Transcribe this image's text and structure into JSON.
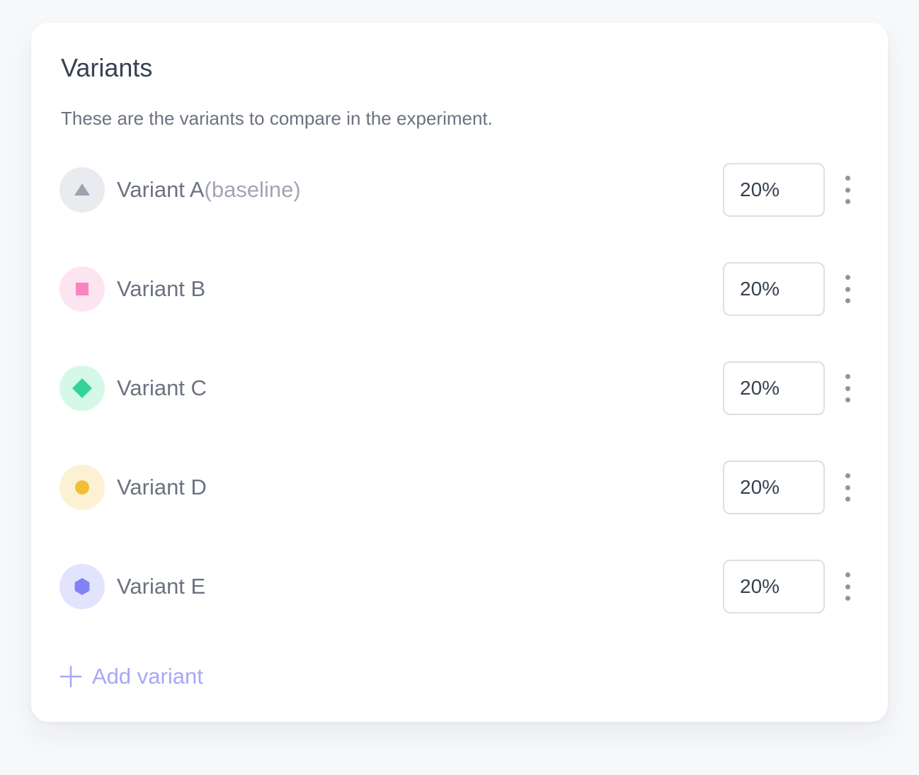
{
  "card": {
    "title": "Variants",
    "subtitle": "These are the variants to compare in the experiment."
  },
  "variants": [
    {
      "name": "Variant A",
      "tag": "(baseline)",
      "value": "20%",
      "icon": "triangle-icon",
      "icon_color": "#9ca3af",
      "badge_color": "#e9ebef"
    },
    {
      "name": "Variant B",
      "tag": "",
      "value": "20%",
      "icon": "square-icon",
      "icon_color": "#f985c0",
      "badge_color": "#fde4f1"
    },
    {
      "name": "Variant C",
      "tag": "",
      "value": "20%",
      "icon": "diamond-icon",
      "icon_color": "#34d399",
      "badge_color": "#d5f8e8"
    },
    {
      "name": "Variant D",
      "tag": "",
      "value": "20%",
      "icon": "circle-icon",
      "icon_color": "#f4bd36",
      "badge_color": "#fdf1d4"
    },
    {
      "name": "Variant E",
      "tag": "",
      "value": "20%",
      "icon": "hexagon-icon",
      "icon_color": "#8182f5",
      "badge_color": "#e2e4fd"
    }
  ],
  "add_button": {
    "label": "Add variant",
    "icon": "plus-icon",
    "color": "#a9a7f5"
  }
}
